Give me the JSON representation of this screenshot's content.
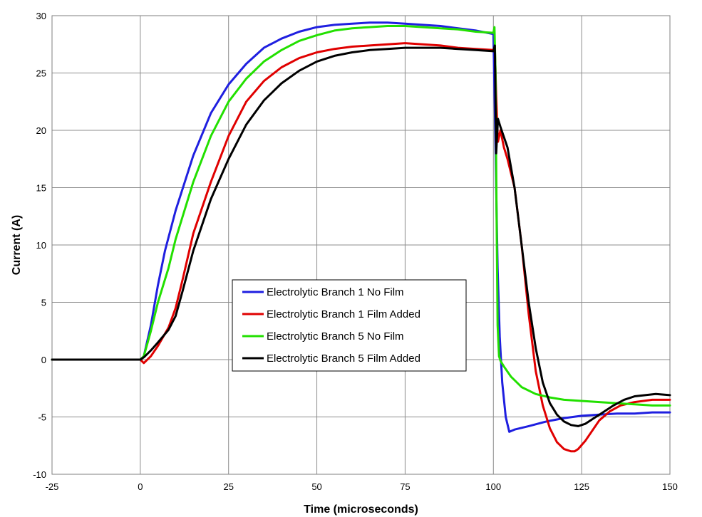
{
  "chart_data": {
    "type": "line",
    "title": "",
    "xlabel": "Time (microseconds)",
    "ylabel": "Current (A)",
    "xlim": [
      -25,
      150
    ],
    "ylim": [
      -10,
      30
    ],
    "xticks": [
      -25,
      0,
      25,
      50,
      75,
      100,
      125,
      150
    ],
    "yticks": [
      -10,
      -5,
      0,
      5,
      10,
      15,
      20,
      25,
      30
    ],
    "grid": true,
    "legend_position": "center-left",
    "series": [
      {
        "name": "Electrolytic Branch 1 No Film",
        "color": "#1f1fe0",
        "x": [
          -25,
          0,
          1,
          3,
          5,
          7,
          10,
          15,
          20,
          25,
          30,
          35,
          40,
          45,
          50,
          55,
          60,
          65,
          70,
          75,
          80,
          85,
          90,
          95,
          100,
          100.4,
          100.8,
          101.2,
          101.8,
          102.5,
          103.5,
          104.5,
          106,
          110,
          115,
          120,
          125,
          130,
          135,
          140,
          145,
          150
        ],
        "y": [
          0,
          0,
          0.3,
          3,
          6.5,
          9.5,
          13,
          17.8,
          21.5,
          24,
          25.8,
          27.2,
          28,
          28.6,
          29,
          29.2,
          29.3,
          29.4,
          29.4,
          29.3,
          29.2,
          29.1,
          28.9,
          28.7,
          28.4,
          22,
          15,
          8,
          2,
          -2,
          -5,
          -6.3,
          -6.1,
          -5.8,
          -5.4,
          -5.1,
          -4.9,
          -4.8,
          -4.7,
          -4.7,
          -4.6,
          -4.6
        ]
      },
      {
        "name": "Electrolytic Branch 1 Film Added",
        "color": "#e00000",
        "x": [
          -25,
          0,
          1,
          3,
          5,
          8,
          10,
          12,
          15,
          20,
          25,
          30,
          35,
          40,
          45,
          50,
          55,
          60,
          65,
          70,
          75,
          80,
          85,
          90,
          95,
          100,
          100.4,
          100.8,
          101.3,
          102,
          103,
          104,
          106,
          108,
          110,
          112,
          114,
          116,
          118,
          120,
          122,
          123,
          124,
          126,
          128,
          130,
          133,
          136,
          140,
          145,
          150
        ],
        "y": [
          0,
          0,
          -0.3,
          0.3,
          1.2,
          2.8,
          4.5,
          7,
          11,
          15.5,
          19.5,
          22.5,
          24.3,
          25.5,
          26.3,
          26.8,
          27.1,
          27.3,
          27.4,
          27.5,
          27.6,
          27.5,
          27.4,
          27.2,
          27.1,
          27.0,
          27.3,
          23,
          19,
          20,
          18.5,
          17.5,
          15,
          10,
          4,
          -1,
          -4,
          -6,
          -7.2,
          -7.8,
          -8.0,
          -8.0,
          -7.8,
          -7.1,
          -6.2,
          -5.3,
          -4.5,
          -4,
          -3.7,
          -3.5,
          -3.5
        ]
      },
      {
        "name": "Electrolytic Branch 5 No Film",
        "color": "#22e000",
        "x": [
          -25,
          0,
          1,
          3,
          5,
          8,
          10,
          15,
          20,
          25,
          30,
          35,
          40,
          45,
          50,
          55,
          60,
          65,
          70,
          75,
          80,
          85,
          90,
          95,
          100,
          100.3,
          100.6,
          100.9,
          101.2,
          101.6,
          102,
          103,
          105,
          108,
          112,
          116,
          120,
          125,
          130,
          135,
          140,
          145,
          150
        ],
        "y": [
          0,
          0,
          0.3,
          2.5,
          5,
          8,
          10.5,
          15.5,
          19.5,
          22.5,
          24.5,
          26,
          27,
          27.8,
          28.3,
          28.7,
          28.9,
          29.0,
          29.1,
          29.1,
          29.0,
          28.9,
          28.8,
          28.6,
          28.5,
          29.0,
          25,
          13,
          3,
          0.3,
          -0.1,
          -0.6,
          -1.5,
          -2.4,
          -3.0,
          -3.3,
          -3.5,
          -3.6,
          -3.7,
          -3.8,
          -3.9,
          -4.0,
          -4.0
        ]
      },
      {
        "name": "Electrolytic Branch 5 Film Added",
        "color": "#000000",
        "x": [
          -25,
          0,
          1,
          3,
          5,
          8,
          10,
          12,
          15,
          20,
          25,
          30,
          35,
          40,
          45,
          50,
          55,
          60,
          65,
          70,
          75,
          80,
          85,
          90,
          95,
          100,
          100.4,
          100.8,
          101.3,
          102,
          104,
          106,
          108,
          110,
          112,
          114,
          116,
          118,
          120,
          122,
          124,
          126,
          128,
          131,
          134,
          137,
          140,
          143,
          146,
          150
        ],
        "y": [
          0,
          0,
          0.2,
          0.8,
          1.5,
          2.6,
          3.8,
          6,
          9.5,
          14,
          17.5,
          20.5,
          22.6,
          24.1,
          25.2,
          26,
          26.5,
          26.8,
          27,
          27.1,
          27.2,
          27.2,
          27.2,
          27.1,
          27.0,
          26.9,
          27.4,
          18,
          21,
          20.3,
          18.5,
          15,
          10,
          5,
          1,
          -2,
          -3.8,
          -4.8,
          -5.4,
          -5.7,
          -5.8,
          -5.6,
          -5.2,
          -4.6,
          -4,
          -3.5,
          -3.2,
          -3.1,
          -3.0,
          -3.1
        ]
      }
    ]
  }
}
